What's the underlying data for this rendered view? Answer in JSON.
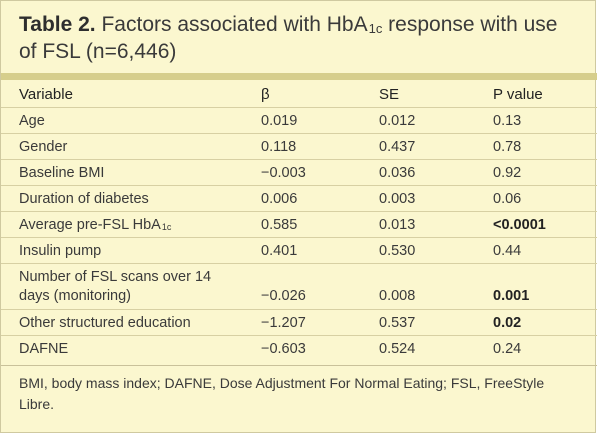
{
  "title": {
    "label": "Table 2.",
    "text_pre": "Factors associated with HbA",
    "text_sub": "1c",
    "text_post": " response with use of FSL (n=6,446)"
  },
  "columns": [
    "Variable",
    "β",
    "SE",
    "P value"
  ],
  "rows": [
    {
      "variable": "Age",
      "beta": "0.019",
      "se": "0.012",
      "p": "0.13"
    },
    {
      "variable": "Gender",
      "beta": "0.118",
      "se": "0.437",
      "p": "0.78"
    },
    {
      "variable": "Baseline BMI",
      "beta": "−0.003",
      "se": "0.036",
      "p": "0.92"
    },
    {
      "variable": "Duration of diabetes",
      "beta": "0.006",
      "se": "0.003",
      "p": "0.06"
    },
    {
      "variable_pre": "Average pre-FSL HbA",
      "variable_sub": "1c",
      "beta": "0.585",
      "se": "0.013",
      "p": "<0.0001"
    },
    {
      "variable": "Insulin pump",
      "beta": "0.401",
      "se": "0.530",
      "p": "0.44"
    },
    {
      "variable": "Number of FSL scans over 14 days (monitoring)",
      "beta": "−0.026",
      "se": "0.008",
      "p": "0.001"
    },
    {
      "variable": "Other structured education",
      "beta": "−1.207",
      "se": "0.537",
      "p": "0.02"
    },
    {
      "variable": "DAFNE",
      "beta": "−0.603",
      "se": "0.524",
      "p": "0.24"
    }
  ],
  "footnote": "BMI, body mass index; DAFNE, Dose Adjustment For Normal Eating; FSL, FreeStyle Libre."
}
